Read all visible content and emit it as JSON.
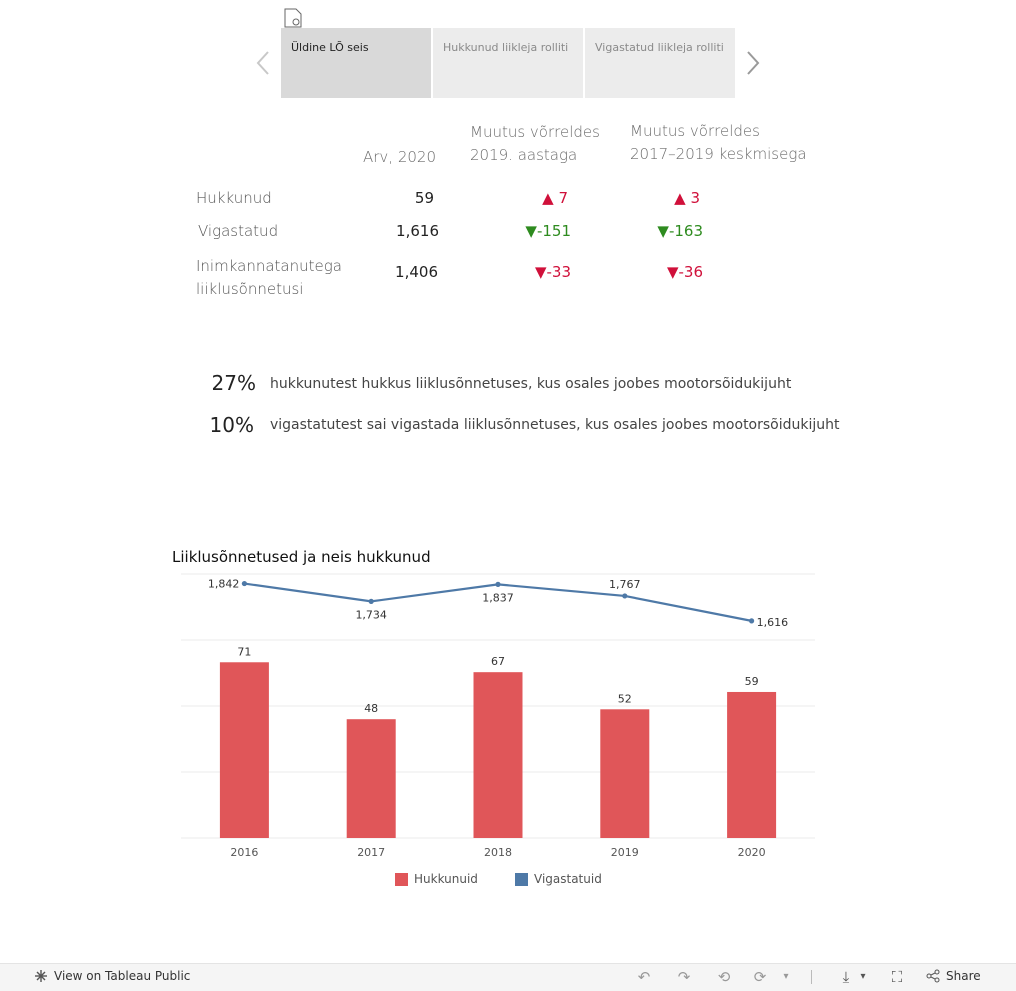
{
  "tabs": [
    {
      "label": "Üldine LÕ seis",
      "active": true
    },
    {
      "label": "Hukkunud liikleja rolliti",
      "active": false
    },
    {
      "label": "Vigastatud liikleja rolliti",
      "active": false
    }
  ],
  "summary": {
    "headers": {
      "count": "Arv, 2020",
      "vs_2019_line1": "Muutus võrreldes",
      "vs_2019_line2": "2019. aastaga",
      "vs_avg_line1": "Muutus võrreldes",
      "vs_avg_line2": "2017–2019 keskmisega"
    },
    "rows": [
      {
        "label": "Hukkunud",
        "count": "59",
        "d1_arrow": "▲",
        "d1": " 7",
        "d2_arrow": "▲",
        "d2": " 3"
      },
      {
        "label": "Vigastatud",
        "count": "1,616",
        "d1_arrow": "▼",
        "d1": "-151",
        "d2_arrow": "▼",
        "d2": "-163"
      },
      {
        "label_line1": "Inimkannatanutega",
        "label_line2": "liiklusõnnetusi",
        "count": "1,406",
        "d1_arrow": "▼",
        "d1": "-33",
        "d2_arrow": "▼",
        "d2": "-36"
      }
    ]
  },
  "percent_lines": [
    {
      "value": "27%",
      "text": "hukkunutest hukkus liiklusõnnetuses, kus osales joobes mootorsõidukijuht"
    },
    {
      "value": "10%",
      "text": "vigastatutest sai vigastada liiklusõnnetuses, kus osales joobes mootorsõidukijuht"
    }
  ],
  "chart_data": {
    "type": "bar",
    "title": "Liiklusõnnetused ja neis hukkunud",
    "categories": [
      "2016",
      "2017",
      "2018",
      "2019",
      "2020"
    ],
    "series": [
      {
        "name": "Hukkunuid",
        "type": "bar",
        "values": [
          71,
          48,
          67,
          52,
          59
        ],
        "labels": [
          "71",
          "48",
          "67",
          "52",
          "59"
        ],
        "color": "#e05659"
      },
      {
        "name": "Vigastatuid",
        "type": "line",
        "values": [
          1842,
          1734,
          1837,
          1767,
          1616
        ],
        "labels": [
          "1,842",
          "1,734",
          "1,837",
          "1,767",
          "1,616"
        ],
        "color": "#4e79a7"
      }
    ],
    "xlabel": "",
    "ylabel": "",
    "grid": true,
    "legend": "bottom"
  },
  "legend": {
    "bar_label": "Hukkunuid",
    "line_label": "Vigastatuid"
  },
  "footer": {
    "view_label": "View on Tableau Public",
    "share_label": "Share"
  },
  "colors": {
    "bar": "#e05659",
    "line": "#4e79a7",
    "up_red": "#d0103a",
    "down_green": "#2e8b1f"
  }
}
